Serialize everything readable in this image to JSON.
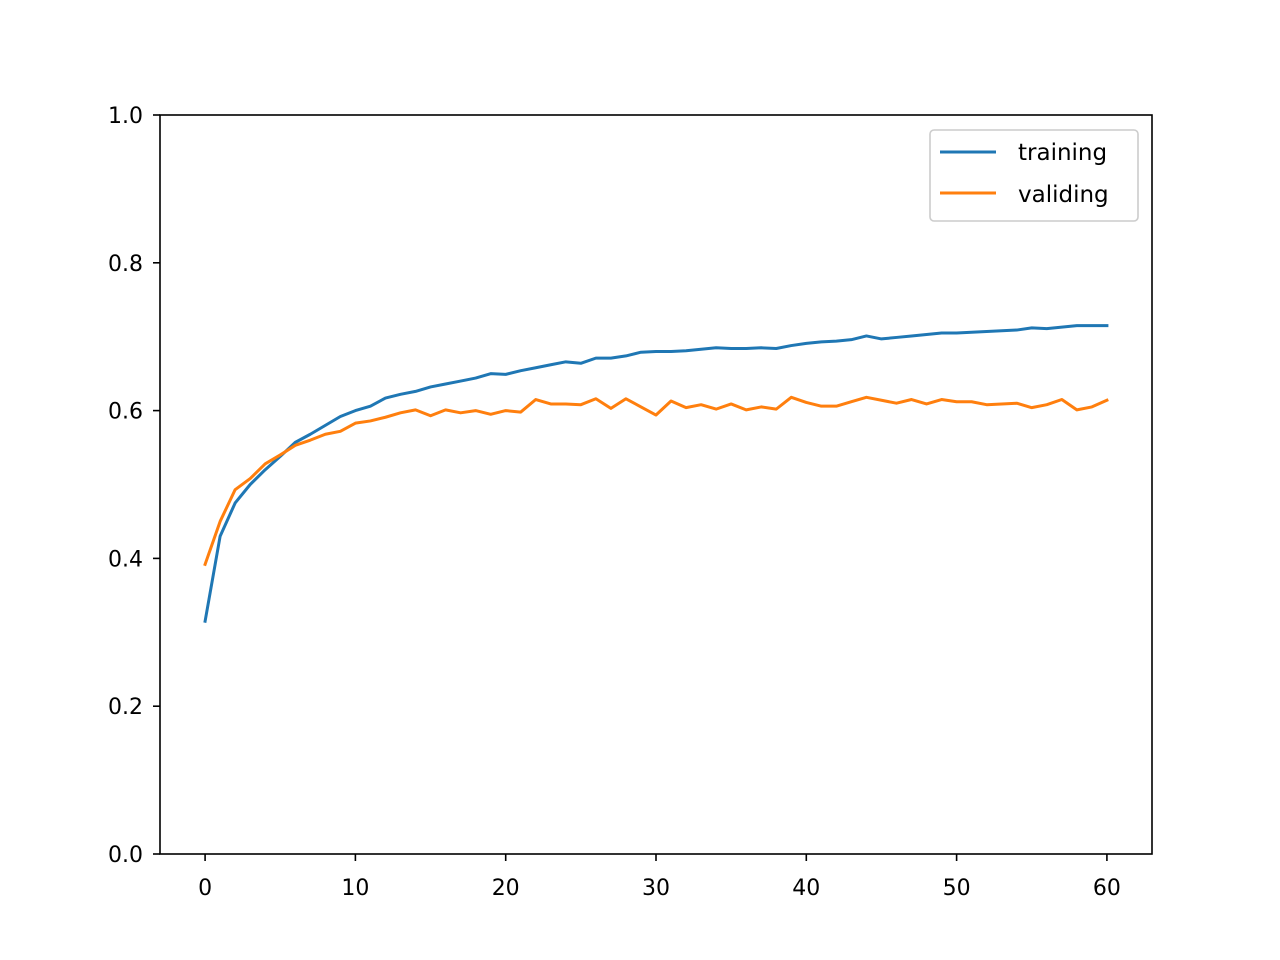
{
  "chart_data": {
    "type": "line",
    "title": "",
    "xlabel": "",
    "ylabel": "",
    "xlim": [
      -3,
      63
    ],
    "ylim": [
      0,
      1.0
    ],
    "x_ticks": [
      0,
      10,
      20,
      30,
      40,
      50,
      60
    ],
    "x_tick_labels": [
      "0",
      "10",
      "20",
      "30",
      "40",
      "50",
      "60"
    ],
    "y_ticks": [
      0.0,
      0.2,
      0.4,
      0.6,
      0.8,
      1.0
    ],
    "y_tick_labels": [
      "0.0",
      "0.2",
      "0.4",
      "0.6",
      "0.8",
      "1.0"
    ],
    "grid": false,
    "legend_position": "top-right",
    "x": [
      0,
      1,
      2,
      3,
      4,
      5,
      6,
      7,
      8,
      9,
      10,
      11,
      12,
      13,
      14,
      15,
      16,
      17,
      18,
      19,
      20,
      21,
      22,
      23,
      24,
      25,
      26,
      27,
      28,
      29,
      30,
      31,
      32,
      33,
      34,
      35,
      36,
      37,
      38,
      39,
      40,
      41,
      42,
      43,
      44,
      45,
      46,
      47,
      48,
      49,
      50,
      51,
      52,
      53,
      54,
      55,
      56,
      57,
      58,
      59,
      60
    ],
    "series": [
      {
        "name": "training",
        "color": "#1f77b4",
        "values": [
          0.315,
          0.43,
          0.475,
          0.5,
          0.52,
          0.538,
          0.557,
          0.568,
          0.58,
          0.592,
          0.6,
          0.606,
          0.617,
          0.622,
          0.626,
          0.632,
          0.636,
          0.64,
          0.644,
          0.65,
          0.649,
          0.654,
          0.658,
          0.662,
          0.666,
          0.664,
          0.671,
          0.671,
          0.674,
          0.679,
          0.68,
          0.68,
          0.681,
          0.683,
          0.685,
          0.684,
          0.684,
          0.685,
          0.684,
          0.688,
          0.691,
          0.693,
          0.694,
          0.696,
          0.701,
          0.697,
          0.699,
          0.701,
          0.703,
          0.705,
          0.705,
          0.706,
          0.707,
          0.708,
          0.709,
          0.712,
          0.711,
          0.713,
          0.715,
          0.715,
          0.715
        ]
      },
      {
        "name": "validing",
        "color": "#ff7f0e",
        "values": [
          0.392,
          0.45,
          0.493,
          0.508,
          0.528,
          0.54,
          0.553,
          0.56,
          0.568,
          0.572,
          0.583,
          0.586,
          0.591,
          0.597,
          0.601,
          0.593,
          0.601,
          0.597,
          0.6,
          0.595,
          0.6,
          0.598,
          0.615,
          0.609,
          0.609,
          0.608,
          0.616,
          0.603,
          0.616,
          0.605,
          0.594,
          0.613,
          0.604,
          0.608,
          0.602,
          0.609,
          0.601,
          0.605,
          0.602,
          0.618,
          0.611,
          0.606,
          0.606,
          0.612,
          0.618,
          0.614,
          0.61,
          0.615,
          0.609,
          0.615,
          0.612,
          0.612,
          0.608,
          0.609,
          0.61,
          0.604,
          0.608,
          0.615,
          0.601,
          0.605,
          0.614
        ]
      }
    ]
  }
}
